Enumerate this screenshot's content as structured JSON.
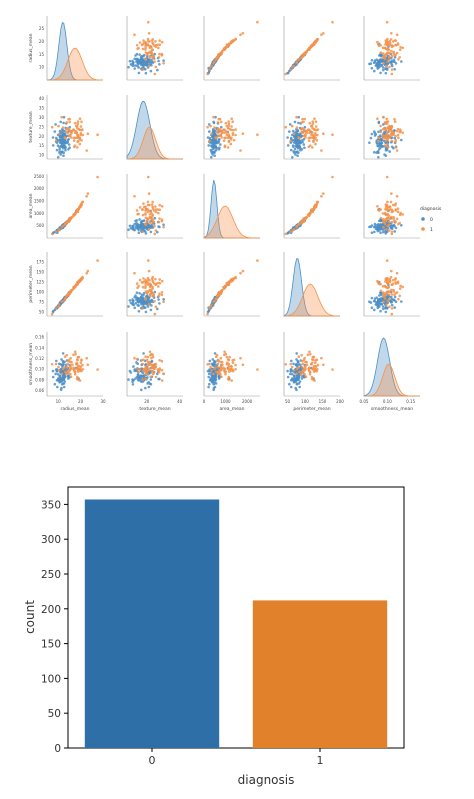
{
  "chart_data": [
    {
      "type": "scatter",
      "subtype": "pairplot",
      "variables": [
        "radius_mean",
        "texture_mean",
        "area_mean",
        "perimeter_mean",
        "smoothness_mean"
      ],
      "hue": "diagnosis",
      "legend": {
        "title": "diagnosis",
        "labels": [
          "0",
          "1"
        ],
        "placement": "right"
      },
      "colors": {
        "0": "#4c8fc7",
        "1": "#f5924a"
      },
      "ranges": {
        "radius_mean": [
          5,
          30
        ],
        "texture_mean": [
          8,
          42
        ],
        "area_mean": [
          0,
          2600
        ],
        "perimeter_mean": [
          40,
          200
        ],
        "smoothness_mean": [
          0.05,
          0.17
        ]
      },
      "ticks": {
        "radius_mean": [
          "10",
          "20",
          "30"
        ],
        "texture_mean": [
          "20",
          "40"
        ],
        "area_mean": [
          "0",
          "1000",
          "2000"
        ],
        "perimeter_mean": [
          "50",
          "100",
          "150",
          "200"
        ],
        "smoothness_mean": [
          "0.05",
          "0.10",
          "0.15"
        ]
      },
      "y_ticks": {
        "radius_mean": [
          "10",
          "15",
          "20",
          "25"
        ],
        "texture_mean": [
          "10",
          "15",
          "20",
          "25",
          "30",
          "35",
          "40"
        ],
        "area_mean": [
          "500",
          "1000",
          "1500",
          "2000",
          "2500"
        ],
        "perimeter_mean": [
          "50",
          "75",
          "100",
          "125",
          "150",
          "175"
        ],
        "smoothness_mean": [
          "0.06",
          "0.08",
          "0.10",
          "0.12",
          "0.14",
          "0.16"
        ]
      },
      "class_stats": {
        "0": {
          "radius_mean": [
            12.1,
            1.8
          ],
          "texture_mean": [
            17.9,
            4.0
          ],
          "area_mean": [
            463,
            134
          ],
          "perimeter_mean": [
            78,
            12
          ],
          "smoothness_mean": [
            0.092,
            0.013
          ]
        },
        "1": {
          "radius_mean": [
            17.5,
            3.2
          ],
          "texture_mean": [
            21.6,
            3.8
          ],
          "area_mean": [
            978,
            368
          ],
          "perimeter_mean": [
            115,
            22
          ],
          "smoothness_mean": [
            0.103,
            0.013
          ]
        }
      }
    },
    {
      "type": "bar",
      "categories": [
        "0",
        "1"
      ],
      "values": [
        357,
        212
      ],
      "xlabel": "diagnosis",
      "ylabel": "count",
      "ylim": [
        0,
        375
      ],
      "yticks": [
        0,
        50,
        100,
        150,
        200,
        250,
        300,
        350
      ],
      "colors": [
        "#2e6fa7",
        "#e1812c"
      ],
      "grid": false
    }
  ]
}
